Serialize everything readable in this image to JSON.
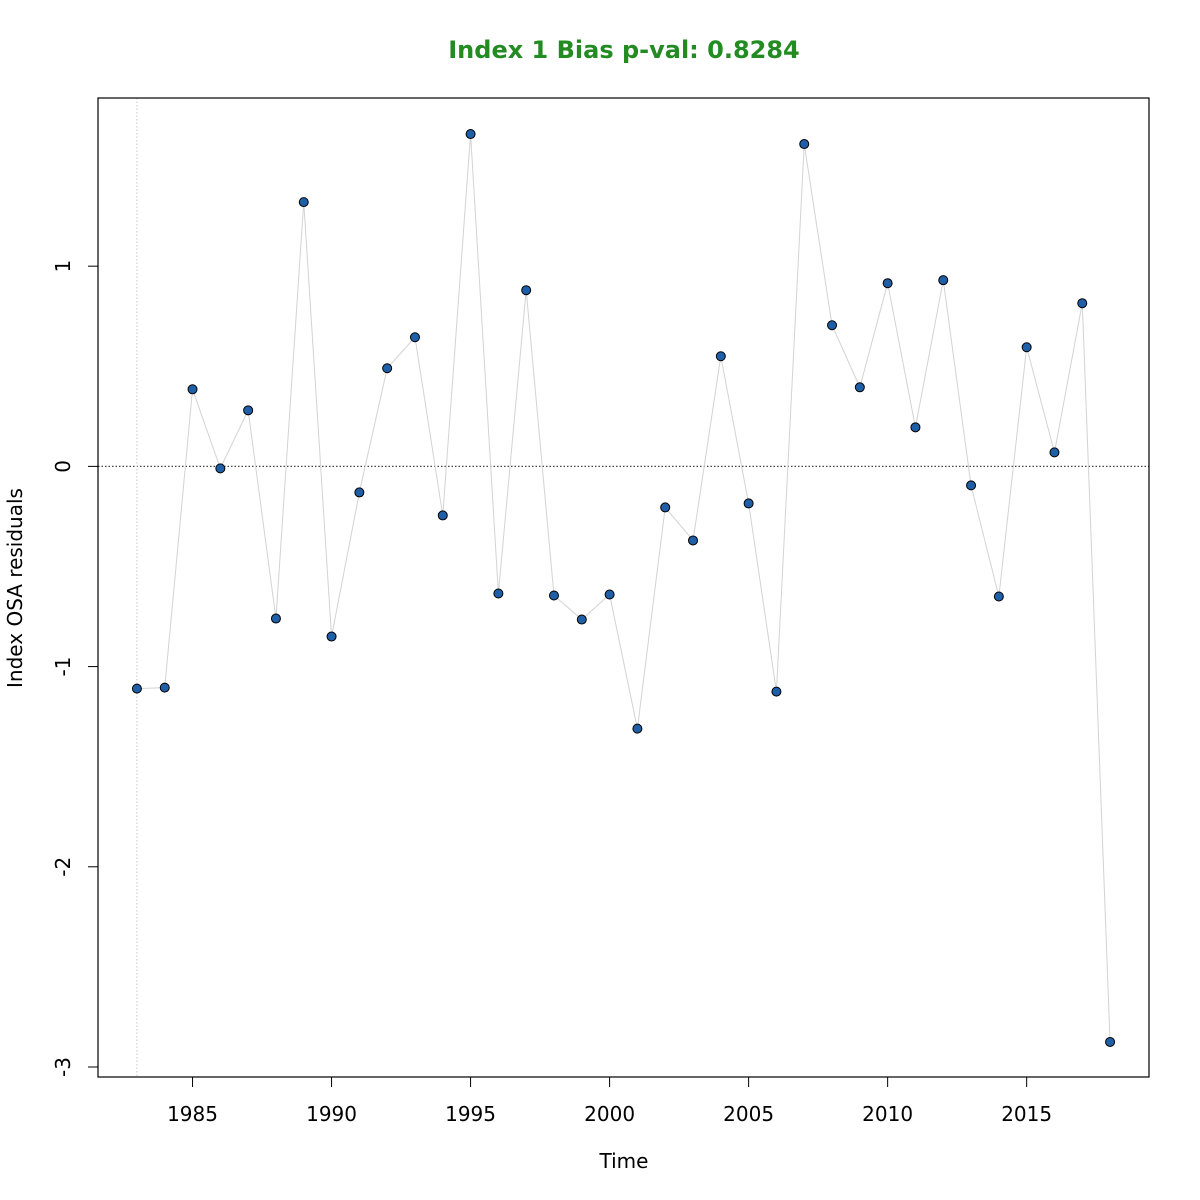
{
  "chart_data": {
    "type": "scatter",
    "title": "Index 1 Bias p-val: 0.8284",
    "title_color": "#228B22",
    "xlabel": "Time",
    "ylabel": "Index OSA residuals",
    "xlim": [
      1981.6,
      2019.4
    ],
    "ylim": [
      -3.05,
      1.84
    ],
    "x_ticks": [
      1985,
      1990,
      1995,
      2000,
      2005,
      2010,
      2015
    ],
    "y_ticks": [
      1,
      0,
      -1,
      -2,
      -3
    ],
    "grid": false,
    "legend": "none",
    "reference_line_y": 0,
    "reference_line_x": 1983,
    "point_color": "#1F5FA8",
    "point_edge_color": "#000000",
    "line_color": "#D3D3D3",
    "series": [
      {
        "x": [
          1983,
          1984,
          1985,
          1986,
          1987,
          1988,
          1989,
          1990,
          1991,
          1992,
          1993,
          1994,
          1995,
          1996,
          1997,
          1998,
          1999,
          2000,
          2001,
          2002,
          2003,
          2004,
          2005,
          2006,
          2007,
          2008,
          2009,
          2010,
          2011,
          2012,
          2013,
          2014,
          2015,
          2016,
          2017,
          2018
        ],
        "y": [
          -1.11,
          -1.105,
          0.385,
          -0.01,
          0.28,
          -0.76,
          1.32,
          -0.85,
          -0.13,
          0.49,
          0.645,
          -0.245,
          1.66,
          -0.635,
          0.88,
          -0.645,
          -0.765,
          -0.64,
          -1.31,
          -0.205,
          -0.37,
          0.55,
          -0.185,
          -1.125,
          1.61,
          0.705,
          0.395,
          0.915,
          0.195,
          0.93,
          -0.095,
          -0.65,
          0.595,
          0.07,
          0.815,
          -2.875
        ]
      }
    ]
  }
}
